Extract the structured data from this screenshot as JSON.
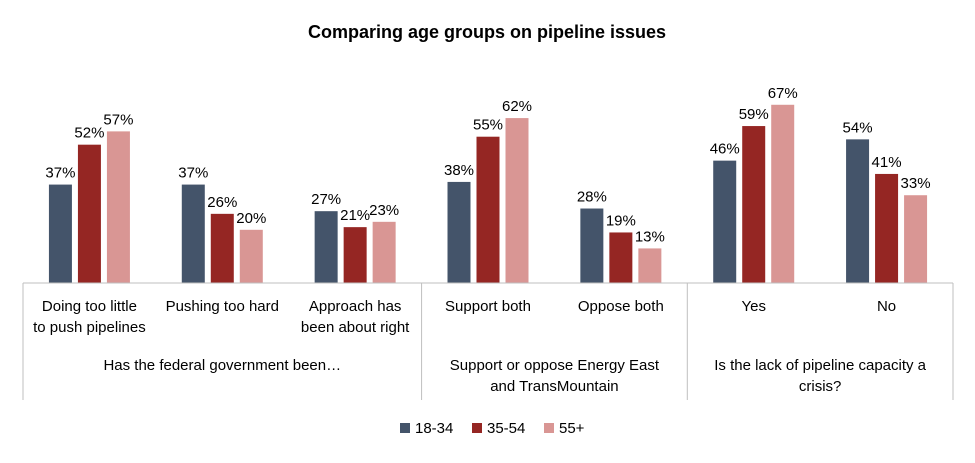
{
  "chart_data": {
    "type": "bar",
    "title": "Comparing age groups on pipeline issues",
    "value_suffix": "%",
    "ylim": [
      0,
      70
    ],
    "grid": false,
    "legend_position": "bottom",
    "groups": [
      {
        "label": [
          "Has the federal government been…"
        ],
        "category_count": 3
      },
      {
        "label": [
          "Support or oppose Energy East",
          "and TransMountain"
        ],
        "category_count": 2
      },
      {
        "label": [
          "Is the lack of pipeline capacity a",
          "crisis?"
        ],
        "category_count": 2
      }
    ],
    "categories": [
      [
        "Doing too little",
        "to push pipelines"
      ],
      [
        "Pushing too hard"
      ],
      [
        "Approach has",
        "been about right"
      ],
      [
        "Support both"
      ],
      [
        "Oppose both"
      ],
      [
        "Yes"
      ],
      [
        "No"
      ]
    ],
    "series": [
      {
        "name": "18-34",
        "color": "#44546A",
        "values": [
          37,
          37,
          27,
          38,
          28,
          46,
          54
        ]
      },
      {
        "name": "35-54",
        "color": "#952623",
        "values": [
          52,
          26,
          21,
          55,
          19,
          59,
          41
        ]
      },
      {
        "name": "55+",
        "color": "#D99694",
        "values": [
          57,
          20,
          23,
          62,
          13,
          67,
          33
        ]
      }
    ]
  }
}
